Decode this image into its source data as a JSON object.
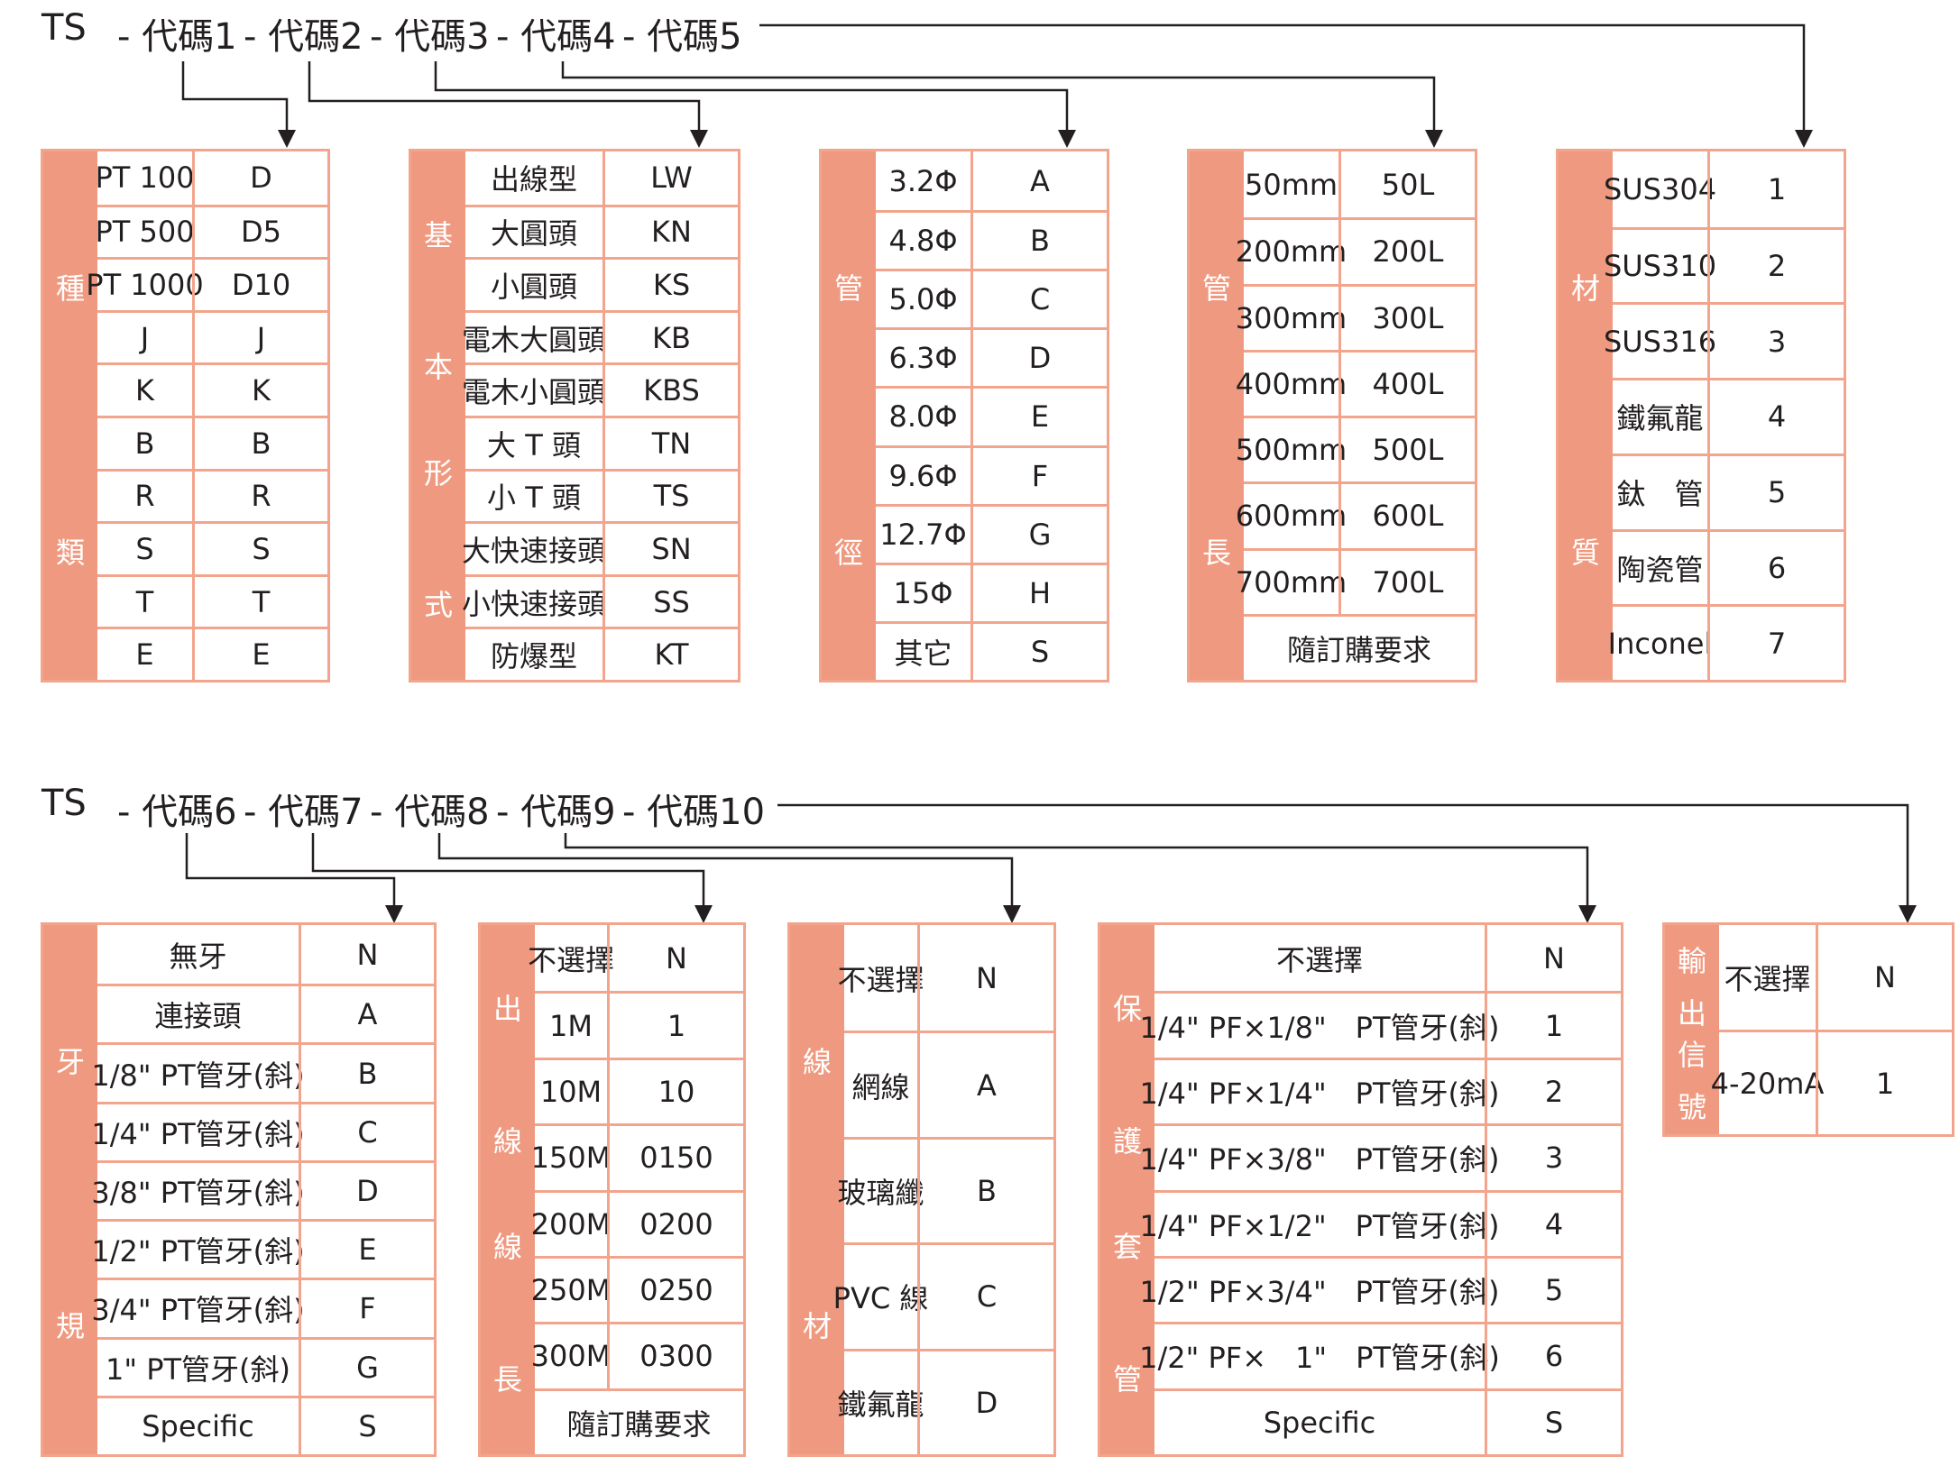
{
  "header1": {
    "prefix": "TS",
    "segments": [
      "- 代碼1",
      "- 代碼2",
      "- 代碼3",
      "- 代碼4",
      "- 代碼5"
    ]
  },
  "header2": {
    "prefix": "TS",
    "segments": [
      "- 代碼6",
      "- 代碼7",
      "- 代碼8",
      "- 代碼9",
      "- 代碼10"
    ]
  },
  "tables": [
    {
      "label": [
        "種",
        "類"
      ],
      "rows": [
        [
          "PT 100",
          "D"
        ],
        [
          "PT 500",
          "D5"
        ],
        [
          "PT 1000",
          "D10"
        ],
        [
          "J",
          "J"
        ],
        [
          "K",
          "K"
        ],
        [
          "B",
          "B"
        ],
        [
          "R",
          "R"
        ],
        [
          "S",
          "S"
        ],
        [
          "T",
          "T"
        ],
        [
          "E",
          "E"
        ]
      ]
    },
    {
      "label": [
        "基",
        "本",
        "形",
        "式"
      ],
      "rows": [
        [
          "出線型",
          "LW"
        ],
        [
          "大圓頭",
          "KN"
        ],
        [
          "小圓頭",
          "KS"
        ],
        [
          "電木大圓頭",
          "KB"
        ],
        [
          "電木小圓頭",
          "KBS"
        ],
        [
          "大 T 頭",
          "TN"
        ],
        [
          "小 T 頭",
          "TS"
        ],
        [
          "大快速接頭",
          "SN"
        ],
        [
          "小快速接頭",
          "SS"
        ],
        [
          "防爆型",
          "KT"
        ]
      ]
    },
    {
      "label": [
        "管",
        "徑"
      ],
      "rows": [
        [
          "3.2Φ",
          "A"
        ],
        [
          "4.8Φ",
          "B"
        ],
        [
          "5.0Φ",
          "C"
        ],
        [
          "6.3Φ",
          "D"
        ],
        [
          "8.0Φ",
          "E"
        ],
        [
          "9.6Φ",
          "F"
        ],
        [
          "12.7Φ",
          "G"
        ],
        [
          "15Φ",
          "H"
        ],
        [
          "其它",
          "S"
        ]
      ]
    },
    {
      "label": [
        "管",
        "長"
      ],
      "rows": [
        [
          "50mm",
          "50L"
        ],
        [
          "200mm",
          "200L"
        ],
        [
          "300mm",
          "300L"
        ],
        [
          "400mm",
          "400L"
        ],
        [
          "500mm",
          "500L"
        ],
        [
          "600mm",
          "600L"
        ],
        [
          "700mm",
          "700L"
        ],
        [
          "隨訂購要求"
        ]
      ]
    },
    {
      "label": [
        "材",
        "質"
      ],
      "rows": [
        [
          "SUS304",
          "1"
        ],
        [
          "SUS310",
          "2"
        ],
        [
          "SUS316",
          "3"
        ],
        [
          "鐵氟龍",
          "4"
        ],
        [
          "鈦　管",
          "5"
        ],
        [
          "陶瓷管",
          "6"
        ],
        [
          "Inconel",
          "7"
        ]
      ]
    },
    {
      "label": [
        "牙",
        "規"
      ],
      "rows": [
        [
          "無牙",
          "N"
        ],
        [
          "連接頭",
          "A"
        ],
        [
          "1/8\" PT管牙(斜)",
          "B"
        ],
        [
          "1/4\" PT管牙(斜)",
          "C"
        ],
        [
          "3/8\" PT管牙(斜)",
          "D"
        ],
        [
          "1/2\" PT管牙(斜)",
          "E"
        ],
        [
          "3/4\" PT管牙(斜)",
          "F"
        ],
        [
          "1\" PT管牙(斜)",
          "G"
        ],
        [
          "Specific",
          "S"
        ]
      ]
    },
    {
      "label": [
        "出",
        "線",
        "線",
        "長"
      ],
      "rows": [
        [
          "不選擇",
          "N"
        ],
        [
          "1M",
          "1"
        ],
        [
          "10M",
          "10"
        ],
        [
          "150M",
          "0150"
        ],
        [
          "200M",
          "0200"
        ],
        [
          "250M",
          "0250"
        ],
        [
          "300M",
          "0300"
        ],
        [
          "隨訂購要求"
        ]
      ]
    },
    {
      "label": [
        "線",
        "材"
      ],
      "rows": [
        [
          "不選擇",
          "N"
        ],
        [
          "網線",
          "A"
        ],
        [
          "玻璃纖",
          "B"
        ],
        [
          "PVC 線",
          "C"
        ],
        [
          "鐵氟龍",
          "D"
        ]
      ]
    },
    {
      "label": [
        "保",
        "護",
        "套",
        "管"
      ],
      "rows": [
        [
          "不選擇",
          "N"
        ],
        [
          "1/4\" PF×1/8\"　PT管牙(斜)",
          "1"
        ],
        [
          "1/4\" PF×1/4\"　PT管牙(斜)",
          "2"
        ],
        [
          "1/4\" PF×3/8\"　PT管牙(斜)",
          "3"
        ],
        [
          "1/4\" PF×1/2\"　PT管牙(斜)",
          "4"
        ],
        [
          "1/2\" PF×3/4\"　PT管牙(斜)",
          "5"
        ],
        [
          "1/2\" PF×　1\"　PT管牙(斜)",
          "6"
        ],
        [
          "Specific",
          "S"
        ]
      ]
    },
    {
      "label": [
        "輸",
        "出",
        "信",
        "號"
      ],
      "rows": [
        [
          "不選擇",
          "N"
        ],
        [
          "4-20mA",
          "1"
        ]
      ]
    }
  ]
}
